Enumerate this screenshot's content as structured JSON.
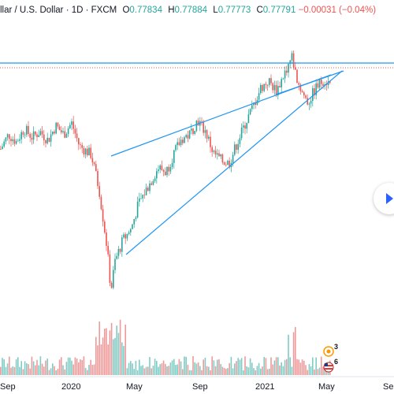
{
  "legend": {
    "symbol": "llar / U.S. Dollar · 1D · FXCM",
    "open_key": "O",
    "open_val": "0.77834",
    "high_key": "H",
    "high_val": "0.77884",
    "low_key": "L",
    "low_val": "0.77773",
    "close_key": "C",
    "close_val": "0.77791",
    "change": "−0.00031 (−0.04%)"
  },
  "xaxis": {
    "labels": [
      "Sep",
      "2020",
      "May",
      "Sep",
      "2021",
      "May",
      "Se"
    ]
  },
  "badges": {
    "earnings_count": "3",
    "dividends_count": "6"
  },
  "colors": {
    "up": "#26a69a",
    "down": "#ef5350",
    "drawing": "#2196f3",
    "price_line": "#ef5350",
    "volume_up": "#80cbc4",
    "volume_down": "#ef9a9a"
  },
  "chart_data": {
    "type": "candlestick",
    "series_description": "AUD/USD daily candles (approximate shape)",
    "trend": [
      [
        0,
        0.728
      ],
      [
        10,
        0.738
      ],
      [
        20,
        0.733
      ],
      [
        30,
        0.742
      ],
      [
        40,
        0.736
      ],
      [
        50,
        0.74
      ],
      [
        60,
        0.734
      ],
      [
        70,
        0.744
      ],
      [
        80,
        0.738
      ],
      [
        90,
        0.746
      ],
      [
        100,
        0.73
      ],
      [
        115,
        0.724
      ],
      [
        125,
        0.7
      ],
      [
        135,
        0.66
      ],
      [
        140,
        0.63
      ],
      [
        145,
        0.65
      ],
      [
        155,
        0.665
      ],
      [
        165,
        0.672
      ],
      [
        175,
        0.69
      ],
      [
        190,
        0.705
      ],
      [
        200,
        0.715
      ],
      [
        210,
        0.712
      ],
      [
        220,
        0.725
      ],
      [
        230,
        0.735
      ],
      [
        240,
        0.738
      ],
      [
        250,
        0.748
      ],
      [
        260,
        0.74
      ],
      [
        270,
        0.725
      ],
      [
        280,
        0.72
      ],
      [
        290,
        0.718
      ],
      [
        300,
        0.732
      ],
      [
        310,
        0.745
      ],
      [
        320,
        0.757
      ],
      [
        330,
        0.77
      ],
      [
        340,
        0.775
      ],
      [
        350,
        0.768
      ],
      [
        360,
        0.78
      ],
      [
        370,
        0.792
      ],
      [
        375,
        0.778
      ],
      [
        380,
        0.77
      ],
      [
        390,
        0.76
      ],
      [
        400,
        0.77
      ],
      [
        410,
        0.776
      ],
      [
        420,
        0.772
      ]
    ],
    "ylim": [
      0.575,
      0.82
    ]
  }
}
